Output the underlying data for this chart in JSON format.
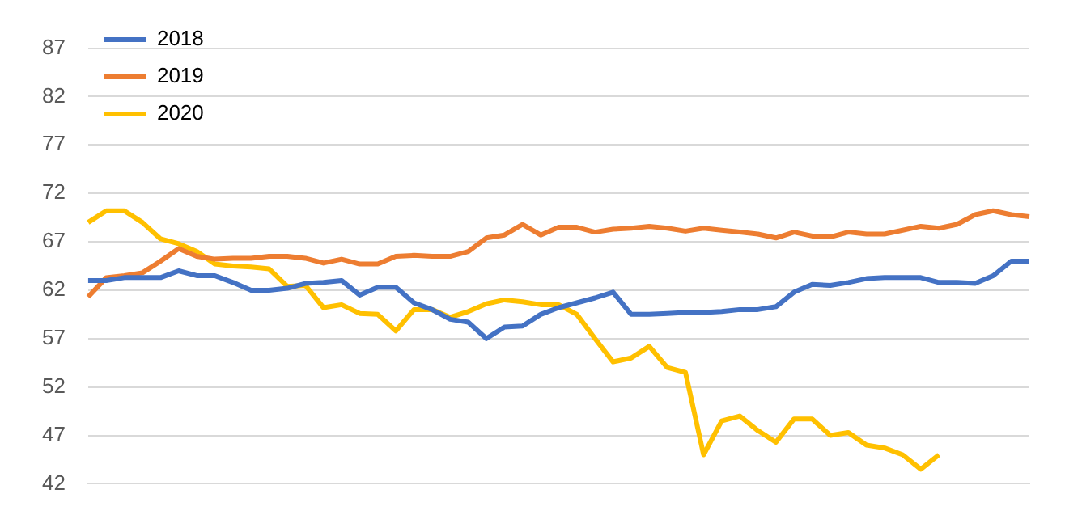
{
  "chart_data": {
    "type": "line",
    "categories": [
      null,
      null,
      null,
      null,
      null,
      null,
      null,
      null,
      null,
      null,
      null,
      null,
      null,
      null,
      null,
      null,
      null,
      null,
      null,
      null,
      null,
      null,
      null,
      null,
      null,
      null,
      null,
      null,
      null,
      null,
      null,
      null,
      null,
      null,
      null,
      null,
      null,
      null,
      null,
      null,
      null,
      null,
      null,
      null,
      null,
      null,
      null,
      null,
      null,
      null,
      null,
      null,
      null
    ],
    "series": [
      {
        "name": "2018",
        "color": "#4472c4",
        "values": [
          63,
          63,
          63.3,
          63.3,
          63.3,
          64,
          63.5,
          63.5,
          62.8,
          62,
          62,
          62.2,
          62.7,
          62.8,
          63,
          61.5,
          62.3,
          62.3,
          60.7,
          60,
          59,
          58.7,
          57,
          58.2,
          58.3,
          59.5,
          60.2,
          60.7,
          61.2,
          61.8,
          59.5,
          59.5,
          59.6,
          59.7,
          59.7,
          59.8,
          60,
          60,
          60.3,
          61.8,
          62.6,
          62.5,
          62.8,
          63.2,
          63.3,
          63.3,
          63.3,
          62.8,
          62.8,
          62.7,
          63.5,
          65,
          65
        ]
      },
      {
        "name": "2019",
        "color": "#ed7d31",
        "values": [
          61.3,
          63.3,
          63.5,
          63.8,
          65,
          66.3,
          65.5,
          65.2,
          65.3,
          65.3,
          65.5,
          65.5,
          65.3,
          64.8,
          65.2,
          64.7,
          64.7,
          65.5,
          65.6,
          65.5,
          65.5,
          66,
          67.4,
          67.7,
          68.8,
          67.7,
          68.5,
          68.5,
          68,
          68.3,
          68.4,
          68.6,
          68.4,
          68.1,
          68.4,
          68.2,
          68,
          67.8,
          67.4,
          68,
          67.6,
          67.5,
          68,
          67.8,
          67.8,
          68.2,
          68.6,
          68.4,
          68.8,
          69.8,
          70.2,
          69.8,
          69.6
        ]
      },
      {
        "name": "2020",
        "color": "#ffc000",
        "values": [
          69,
          70.2,
          70.2,
          69,
          67.3,
          66.8,
          66,
          64.7,
          64.5,
          64.4,
          64.2,
          62.4,
          62.5,
          60.2,
          60.5,
          59.6,
          59.5,
          57.8,
          60,
          60,
          59.2,
          59.8,
          60.6,
          61,
          60.8,
          60.5,
          60.5,
          59.5,
          57,
          54.6,
          55,
          56.2,
          54,
          53.5,
          45,
          48.5,
          49,
          47.5,
          46.3,
          48.7,
          48.7,
          47,
          47.3,
          46,
          45.7,
          45,
          43.5,
          45,
          null,
          null,
          null,
          null,
          null
        ]
      }
    ],
    "ylim": [
      42,
      87
    ],
    "yticks": [
      42,
      47,
      52,
      57,
      62,
      67,
      72,
      77,
      82,
      87
    ],
    "grid": "y",
    "legend": "top left",
    "marker": "none",
    "line_style": "solid"
  }
}
